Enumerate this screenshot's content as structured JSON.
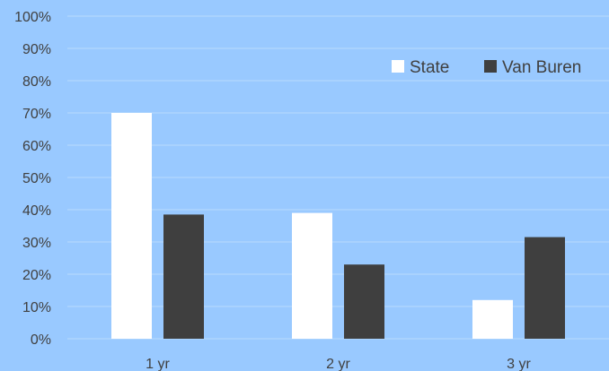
{
  "colors": {
    "background": "#99c9ff",
    "gridline": "#b9dafc",
    "axis_text": "#404040",
    "state": "#ffffff",
    "van_buren": "#3f3f3f"
  },
  "chart_data": {
    "type": "bar",
    "title": "",
    "xlabel": "",
    "ylabel": "",
    "categories": [
      "1 yr",
      "2 yr",
      "3 yr"
    ],
    "series": [
      {
        "name": "State",
        "values": [
          70,
          39,
          12
        ],
        "color": "#ffffff"
      },
      {
        "name": "Van Buren",
        "values": [
          38.5,
          23,
          31.5
        ],
        "color": "#3f3f3f"
      }
    ],
    "ylim": [
      0,
      100
    ],
    "ytick_step": 10,
    "ytick_suffix": "%",
    "grid": true,
    "legend_position": "top-right"
  }
}
